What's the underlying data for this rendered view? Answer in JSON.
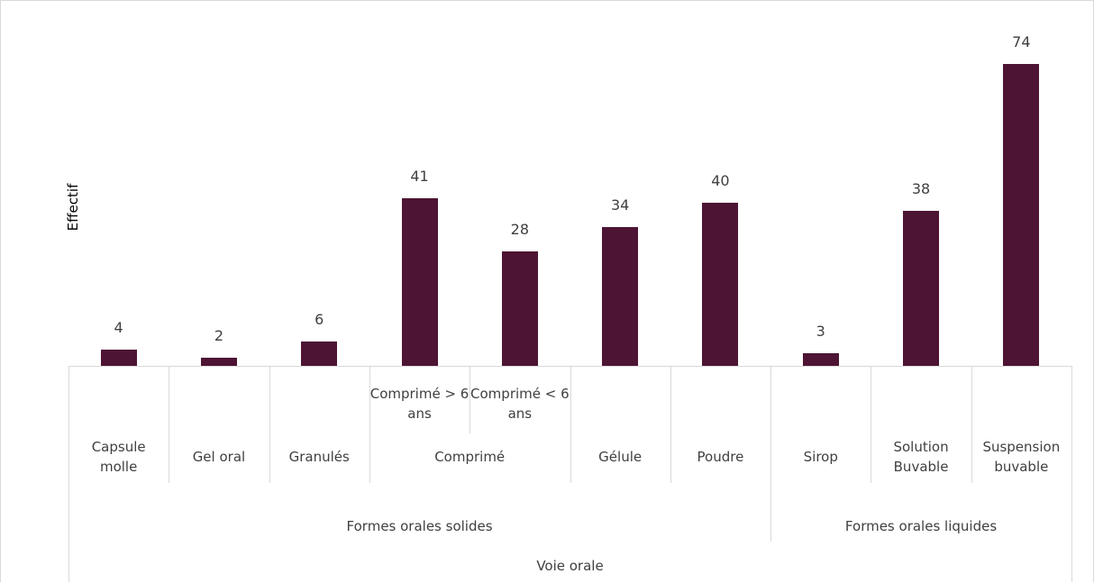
{
  "chart_data": {
    "type": "bar",
    "y_label": "Effectif",
    "categories": [
      "Capsule molle",
      "Gel oral",
      "Granulés",
      "Comprimé > 6 ans",
      "Comprimé < 6 ans",
      "Gélule",
      "Poudre",
      "Sirop",
      "Solution Buvable",
      "Suspension buvable"
    ],
    "values": [
      4,
      2,
      6,
      41,
      28,
      34,
      40,
      3,
      38,
      74
    ],
    "color": "#4d1433",
    "subgroups": [
      {
        "name": "Comprimé",
        "first": 3,
        "count": 2
      }
    ],
    "groups": [
      {
        "name": "Formes orales solides",
        "count": 7
      },
      {
        "name": "Formes orales liquides",
        "count": 3
      }
    ],
    "outer_groups": [
      {
        "name": "Voie orale",
        "count": 10
      }
    ]
  }
}
